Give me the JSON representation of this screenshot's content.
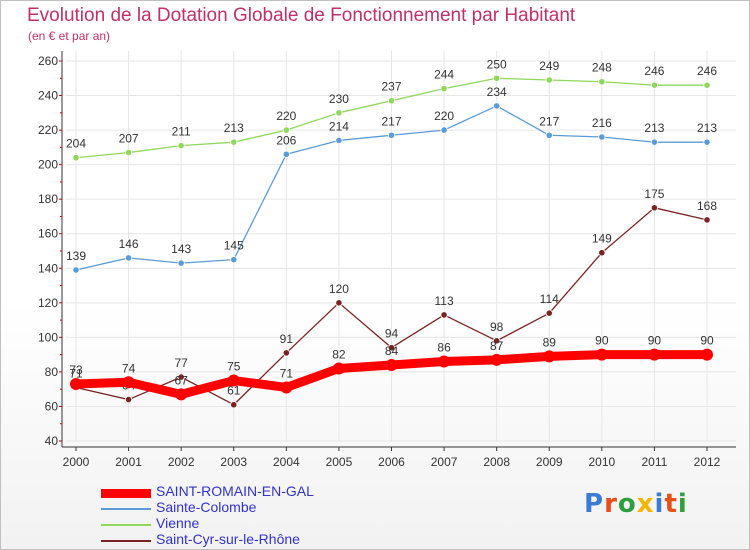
{
  "header": {
    "title": "Evolution de la Dotation Globale de Fonctionnement par Habitant",
    "subtitle": "(en € et par an)"
  },
  "colors": {
    "title": "#c0306a",
    "axis": "#333333",
    "grid": "#e6e6e6",
    "tick_marks": "#cc0000",
    "legend_text": "#3333cc"
  },
  "branding": {
    "logo_text": "Proxiti",
    "logo_colors": [
      "#3a7bd5",
      "#e94e1b",
      "#2e9e3e",
      "#f7b500",
      "#3a7bd5",
      "#e94e1b",
      "#2e9e3e"
    ]
  },
  "chart_data": {
    "type": "line",
    "title": "Evolution de la Dotation Globale de Fonctionnement par Habitant",
    "subtitle": "(en € et par an)",
    "x": [
      "2000",
      "2001",
      "2002",
      "2003",
      "2004",
      "2005",
      "2006",
      "2007",
      "2008",
      "2009",
      "2010",
      "2011",
      "2012"
    ],
    "ylim": [
      40,
      260
    ],
    "yticks": [
      40,
      60,
      80,
      100,
      120,
      140,
      160,
      180,
      200,
      220,
      240,
      260
    ],
    "grid": true,
    "legend_position": "bottom-left",
    "series": [
      {
        "name": "SAINT-ROMAIN-EN-GAL",
        "color": "#ff0000",
        "emphasis": true,
        "values": [
          73,
          74,
          67,
          75,
          71,
          82,
          84,
          86,
          87,
          89,
          90,
          90,
          90
        ],
        "labels": [
          "73",
          "74",
          "67",
          "75",
          "71",
          "82",
          "84",
          "86",
          "87",
          "89",
          "90",
          "90",
          "90"
        ]
      },
      {
        "name": "Sainte-Colombe",
        "color": "#5b9bd5",
        "emphasis": false,
        "values": [
          139,
          146,
          143,
          145,
          206,
          214,
          217,
          220,
          234,
          217,
          216,
          213,
          213
        ],
        "labels": [
          "139",
          "146",
          "143",
          "145",
          "206",
          "214",
          "217",
          "220",
          "234",
          "217",
          "216",
          "213",
          "213"
        ]
      },
      {
        "name": "Vienne",
        "color": "#8ed85a",
        "emphasis": false,
        "values": [
          204,
          207,
          211,
          213,
          220,
          230,
          237,
          244,
          250,
          249,
          248,
          246,
          246
        ],
        "labels": [
          "204",
          "207",
          "211",
          "213",
          "220",
          "230",
          "237",
          "244",
          "250",
          "249",
          "248",
          "246",
          "246"
        ]
      },
      {
        "name": "Saint-Cyr-sur-le-Rhône",
        "color": "#7a2323",
        "emphasis": false,
        "values": [
          71,
          64,
          77,
          61,
          91,
          120,
          94,
          113,
          98,
          114,
          149,
          175,
          168
        ],
        "labels": [
          "71",
          "64",
          "77",
          "61",
          "91",
          "120",
          "94",
          "113",
          "98",
          "114",
          "149",
          "175",
          "168"
        ]
      }
    ]
  }
}
